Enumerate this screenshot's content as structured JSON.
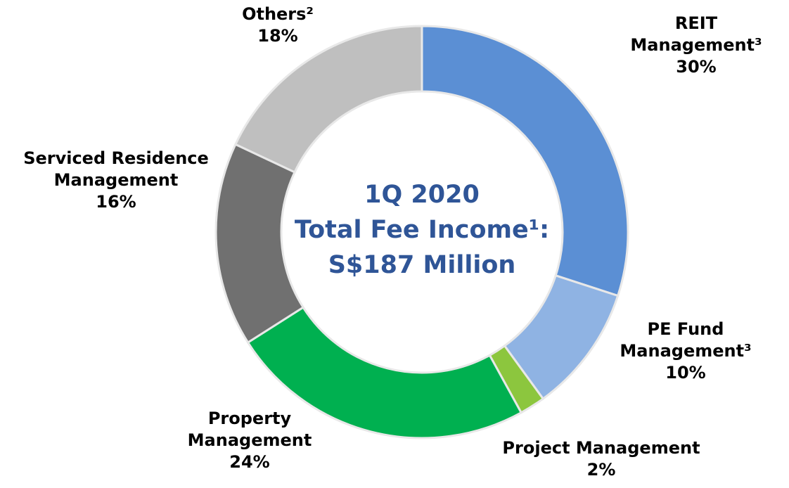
{
  "chart_data": {
    "type": "donut",
    "center_text": [
      "1Q 2020",
      "Total Fee Income¹:",
      "S$187 Million"
    ],
    "categories": [
      "REIT Management³",
      "PE Fund Management³",
      "Project Management",
      "Property Management",
      "Serviced Residence Management",
      "Others²"
    ],
    "values": [
      30,
      10,
      2,
      24,
      16,
      18
    ],
    "value_labels": [
      "30%",
      "10%",
      "2%",
      "24%",
      "16%",
      "18%"
    ],
    "colors": [
      "#5b8fd4",
      "#8fb3e3",
      "#8cc63e",
      "#00b050",
      "#707070",
      "#bfbfbf"
    ]
  }
}
